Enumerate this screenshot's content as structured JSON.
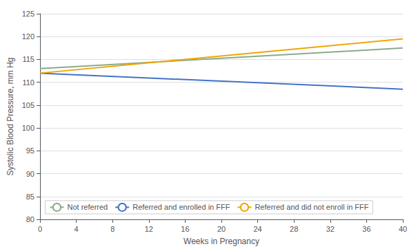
{
  "chart_data": {
    "type": "line",
    "xlabel": "Weeks in Pregnancy",
    "ylabel": "Systolic Blood Pressure, mm Hg",
    "x": [
      0,
      40
    ],
    "series": [
      {
        "name": "Not referred",
        "color": "#8aaa8a",
        "values": [
          113.0,
          117.5
        ]
      },
      {
        "name": "Referred and enrolled in FFF",
        "color": "#4472c4",
        "values": [
          112.0,
          108.5
        ]
      },
      {
        "name": "Referred and did not enroll in FFF",
        "color": "#f0a500",
        "values": [
          112.0,
          119.5
        ]
      }
    ],
    "xlim": [
      0,
      40
    ],
    "ylim": [
      80,
      125
    ],
    "xticks": [
      0,
      4,
      8,
      12,
      16,
      20,
      24,
      28,
      32,
      36,
      40
    ],
    "yticks": [
      80,
      85,
      90,
      95,
      100,
      105,
      110,
      115,
      120,
      125
    ],
    "grid": true,
    "legend": "bottom"
  }
}
